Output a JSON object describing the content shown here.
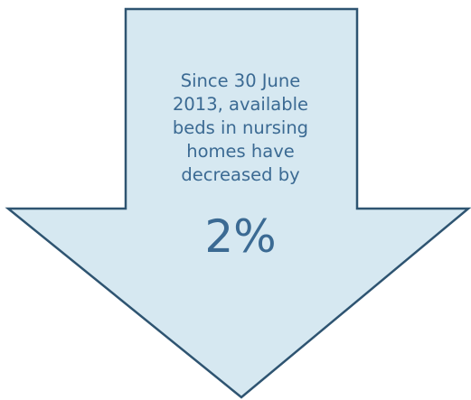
{
  "callout": {
    "lines": [
      "Since 30 June",
      "2013, available",
      "beds in nursing",
      "homes have",
      "decreased by"
    ],
    "statistic": "2%"
  },
  "colors": {
    "fill": "#d6e8f1",
    "outline": "#2e5471",
    "text": "#3b6a93"
  },
  "icons": {
    "shape": "down-arrow"
  }
}
